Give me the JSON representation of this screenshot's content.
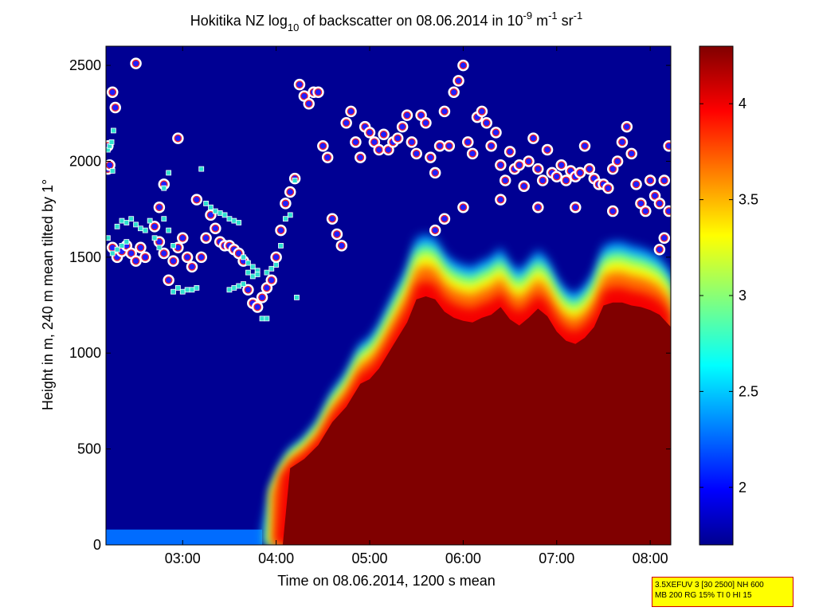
{
  "chart_data": {
    "type": "heatmap",
    "title_parts": {
      "a": "Hokitika NZ log",
      "a_sub": "10",
      "b": " of backscatter on 08.06.2014 in 10",
      "b_sup": "-9",
      "c": " m",
      "c_sup": "-1",
      "d": " sr",
      "d_sup": "-1"
    },
    "xlabel": "Time on 08.06.2014, 1200 s mean",
    "ylabel": "Height in m, 240 m mean tilted by 1°",
    "x_ticks": [
      "03:00",
      "04:00",
      "05:00",
      "06:00",
      "07:00",
      "08:00"
    ],
    "x_tick_hours": [
      3,
      4,
      5,
      6,
      7,
      8
    ],
    "xlim_hours": [
      2.18,
      8.22
    ],
    "y_ticks": [
      0,
      500,
      1000,
      1500,
      2000,
      2500
    ],
    "ylim": [
      0,
      2600
    ],
    "colorbar": {
      "ticks": [
        "2",
        "2.5",
        "3",
        "3.5",
        "4"
      ],
      "tick_values": [
        2,
        2.5,
        3,
        3.5,
        4
      ],
      "range": [
        1.7,
        4.3
      ],
      "colormap": "jet"
    },
    "background_value": 1.75,
    "surface_layer": {
      "value": 2.3,
      "top_m": 80,
      "until_hours": 3.85
    },
    "boundary_layer_top": {
      "hours": [
        3.85,
        3.95,
        4.05,
        4.15,
        4.3,
        4.45,
        4.6,
        4.75,
        4.9,
        5.0,
        5.1,
        5.2,
        5.3,
        5.4,
        5.5,
        5.6,
        5.7,
        5.8,
        5.9,
        6.0,
        6.1,
        6.2,
        6.3,
        6.4,
        6.5,
        6.6,
        6.7,
        6.8,
        6.9,
        7.0,
        7.1,
        7.2,
        7.3,
        7.4,
        7.5,
        7.6,
        7.7,
        7.8,
        7.9,
        8.0,
        8.1,
        8.22
      ],
      "height_m": [
        80,
        300,
        420,
        500,
        560,
        650,
        800,
        900,
        1050,
        1080,
        1150,
        1250,
        1350,
        1450,
        1600,
        1620,
        1600,
        1520,
        1480,
        1460,
        1450,
        1480,
        1500,
        1550,
        1470,
        1430,
        1480,
        1540,
        1490,
        1390,
        1330,
        1310,
        1350,
        1420,
        1560,
        1580,
        1580,
        1560,
        1550,
        1530,
        1500,
        1420
      ]
    },
    "marker_series": [
      {
        "marker": "circle",
        "color": "#1f1fff",
        "edge": "#ff2020",
        "points_hours_m": [
          [
            2.2,
            1960
          ],
          [
            2.25,
            2360
          ],
          [
            2.28,
            2280
          ],
          [
            2.2,
            2080
          ],
          [
            2.22,
            1980
          ],
          [
            2.25,
            1550
          ],
          [
            2.3,
            1500
          ],
          [
            2.35,
            1530
          ],
          [
            2.4,
            1560
          ],
          [
            2.45,
            1520
          ],
          [
            2.5,
            1480
          ],
          [
            2.55,
            1550
          ],
          [
            2.6,
            1500
          ],
          [
            2.5,
            2510
          ],
          [
            2.7,
            1660
          ],
          [
            2.75,
            1580
          ],
          [
            2.8,
            1520
          ],
          [
            2.85,
            1380
          ],
          [
            2.9,
            1480
          ],
          [
            2.95,
            1550
          ],
          [
            3.0,
            1600
          ],
          [
            3.05,
            1500
          ],
          [
            3.1,
            1450
          ],
          [
            2.95,
            2120
          ],
          [
            2.8,
            1880
          ],
          [
            2.75,
            1760
          ],
          [
            3.15,
            1800
          ],
          [
            3.2,
            1500
          ],
          [
            3.25,
            1600
          ],
          [
            3.3,
            1720
          ],
          [
            3.35,
            1650
          ],
          [
            3.4,
            1580
          ],
          [
            3.45,
            1560
          ],
          [
            3.5,
            1560
          ],
          [
            3.55,
            1540
          ],
          [
            3.6,
            1520
          ],
          [
            3.65,
            1480
          ],
          [
            3.7,
            1330
          ],
          [
            3.75,
            1260
          ],
          [
            3.8,
            1240
          ],
          [
            3.85,
            1290
          ],
          [
            3.9,
            1340
          ],
          [
            3.95,
            1380
          ],
          [
            4.0,
            1500
          ],
          [
            4.05,
            1640
          ],
          [
            4.1,
            1780
          ],
          [
            4.15,
            1840
          ],
          [
            4.2,
            1910
          ],
          [
            4.25,
            2400
          ],
          [
            4.3,
            2340
          ],
          [
            4.35,
            2300
          ],
          [
            4.4,
            2360
          ],
          [
            4.45,
            2360
          ],
          [
            4.5,
            2080
          ],
          [
            4.55,
            2020
          ],
          [
            4.6,
            1700
          ],
          [
            4.65,
            1620
          ],
          [
            4.7,
            1560
          ],
          [
            4.75,
            2200
          ],
          [
            4.8,
            2260
          ],
          [
            4.85,
            2100
          ],
          [
            4.9,
            2020
          ],
          [
            4.95,
            2180
          ],
          [
            5.0,
            2150
          ],
          [
            5.05,
            2100
          ],
          [
            5.1,
            2060
          ],
          [
            5.15,
            2140
          ],
          [
            5.2,
            2060
          ],
          [
            5.25,
            2100
          ],
          [
            5.3,
            2120
          ],
          [
            5.35,
            2180
          ],
          [
            5.4,
            2240
          ],
          [
            5.45,
            2100
          ],
          [
            5.5,
            2040
          ],
          [
            5.55,
            2240
          ],
          [
            5.6,
            2200
          ],
          [
            5.65,
            2020
          ],
          [
            5.7,
            1940
          ],
          [
            5.75,
            2080
          ],
          [
            5.8,
            2260
          ],
          [
            5.85,
            2080
          ],
          [
            5.9,
            2360
          ],
          [
            5.95,
            2420
          ],
          [
            6.0,
            2500
          ],
          [
            6.05,
            2100
          ],
          [
            6.1,
            2040
          ],
          [
            6.15,
            2230
          ],
          [
            6.2,
            2260
          ],
          [
            6.25,
            2200
          ],
          [
            6.3,
            2080
          ],
          [
            6.35,
            2150
          ],
          [
            6.4,
            1980
          ],
          [
            6.45,
            1900
          ],
          [
            6.5,
            2050
          ],
          [
            6.55,
            1960
          ],
          [
            6.6,
            1980
          ],
          [
            6.65,
            1870
          ],
          [
            6.7,
            2000
          ],
          [
            6.75,
            2120
          ],
          [
            6.8,
            1960
          ],
          [
            6.85,
            1900
          ],
          [
            6.9,
            2060
          ],
          [
            6.95,
            1940
          ],
          [
            7.0,
            1920
          ],
          [
            7.05,
            1980
          ],
          [
            7.1,
            1900
          ],
          [
            7.15,
            1950
          ],
          [
            7.2,
            1920
          ],
          [
            7.25,
            1940
          ],
          [
            7.3,
            2080
          ],
          [
            7.35,
            1960
          ],
          [
            7.4,
            1910
          ],
          [
            7.45,
            1880
          ],
          [
            7.5,
            1880
          ],
          [
            7.55,
            1860
          ],
          [
            7.6,
            1960
          ],
          [
            7.65,
            2000
          ],
          [
            7.7,
            2100
          ],
          [
            7.75,
            2180
          ],
          [
            7.8,
            2040
          ],
          [
            7.85,
            1880
          ],
          [
            7.9,
            1780
          ],
          [
            7.95,
            1740
          ],
          [
            8.0,
            1900
          ],
          [
            8.05,
            1820
          ],
          [
            8.1,
            1780
          ],
          [
            8.15,
            1900
          ],
          [
            8.2,
            2080
          ],
          [
            8.2,
            1740
          ],
          [
            8.15,
            1600
          ],
          [
            8.1,
            1540
          ],
          [
            7.6,
            1740
          ],
          [
            7.2,
            1760
          ],
          [
            6.8,
            1760
          ],
          [
            6.4,
            1800
          ],
          [
            6.0,
            1760
          ],
          [
            5.8,
            1700
          ],
          [
            5.7,
            1640
          ]
        ]
      },
      {
        "marker": "square",
        "color": "#30e0d0",
        "edge": "#ffffff",
        "points_hours_m": [
          [
            2.2,
            2060
          ],
          [
            2.22,
            2080
          ],
          [
            2.24,
            2100
          ],
          [
            2.26,
            2160
          ],
          [
            2.25,
            1950
          ],
          [
            2.3,
            1660
          ],
          [
            2.35,
            1690
          ],
          [
            2.4,
            1680
          ],
          [
            2.45,
            1700
          ],
          [
            2.5,
            1670
          ],
          [
            2.55,
            1650
          ],
          [
            2.6,
            1640
          ],
          [
            2.65,
            1690
          ],
          [
            2.7,
            1600
          ],
          [
            2.75,
            1550
          ],
          [
            2.8,
            1700
          ],
          [
            2.85,
            1640
          ],
          [
            2.9,
            1560
          ],
          [
            2.85,
            1940
          ],
          [
            2.8,
            1860
          ],
          [
            2.9,
            1320
          ],
          [
            2.95,
            1340
          ],
          [
            3.0,
            1320
          ],
          [
            3.05,
            1330
          ],
          [
            3.1,
            1330
          ],
          [
            3.15,
            1340
          ],
          [
            3.2,
            1960
          ],
          [
            3.25,
            1780
          ],
          [
            3.3,
            1760
          ],
          [
            3.35,
            1740
          ],
          [
            3.4,
            1730
          ],
          [
            3.45,
            1720
          ],
          [
            3.5,
            1700
          ],
          [
            3.55,
            1690
          ],
          [
            3.6,
            1680
          ],
          [
            3.65,
            1500
          ],
          [
            3.7,
            1470
          ],
          [
            3.75,
            1450
          ],
          [
            3.8,
            1430
          ],
          [
            3.85,
            1180
          ],
          [
            3.9,
            1180
          ],
          [
            3.95,
            1440
          ],
          [
            4.0,
            1460
          ],
          [
            4.05,
            1560
          ],
          [
            4.1,
            1700
          ],
          [
            4.15,
            1720
          ],
          [
            4.2,
            1900
          ],
          [
            4.22,
            1290
          ],
          [
            2.2,
            1600
          ],
          [
            2.25,
            1520
          ],
          [
            2.3,
            1540
          ],
          [
            2.35,
            1560
          ],
          [
            2.4,
            1580
          ],
          [
            3.5,
            1330
          ],
          [
            3.55,
            1340
          ],
          [
            3.6,
            1350
          ],
          [
            3.65,
            1360
          ],
          [
            3.7,
            1420
          ],
          [
            3.75,
            1400
          ],
          [
            3.8,
            1410
          ],
          [
            3.9,
            1420
          ]
        ]
      }
    ]
  },
  "info_box": {
    "line1": "3.5XEFUV 3 [30 2500] NH 600",
    "line2": "MB 200 RG 15% TI 0 HI 15"
  },
  "colors": {
    "axis": "#000000",
    "background": "#ffffff"
  }
}
